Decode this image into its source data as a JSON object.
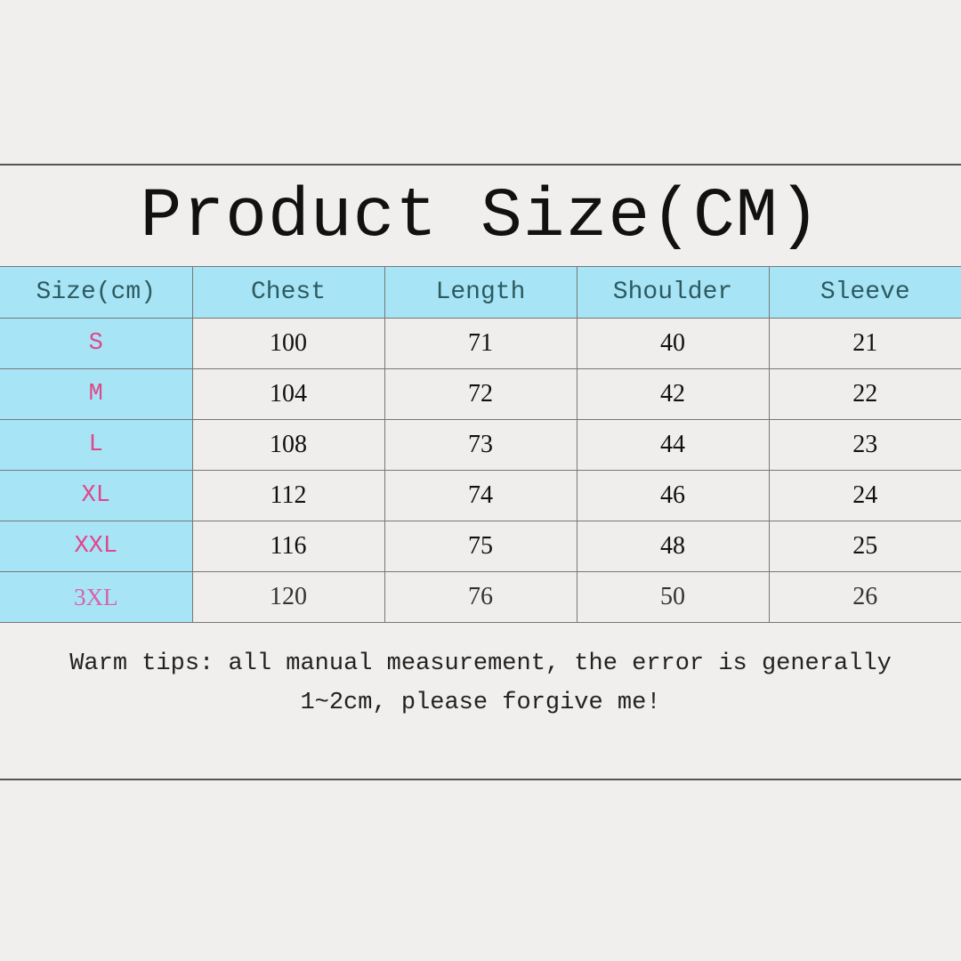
{
  "title": "Product Size(CM)",
  "table": {
    "headers": [
      "Size(cm)",
      "Chest",
      "Length",
      "Shoulder",
      "Sleeve"
    ],
    "rows": [
      [
        "S",
        "100",
        "71",
        "40",
        "21"
      ],
      [
        "M",
        "104",
        "72",
        "42",
        "22"
      ],
      [
        "L",
        "108",
        "73",
        "44",
        "23"
      ],
      [
        "XL",
        "112",
        "74",
        "46",
        "24"
      ],
      [
        "XXL",
        "116",
        "75",
        "48",
        "25"
      ],
      [
        "3XL",
        "120",
        "76",
        "50",
        "26"
      ]
    ]
  },
  "tips": {
    "line1": "Warm tips: all manual measurement, the error is generally",
    "line2": "1~2cm, please forgive me!"
  },
  "colors": {
    "header_bg": "#a7e5f6",
    "size_text": "#e0468a",
    "header_text": "#2d5a60"
  }
}
